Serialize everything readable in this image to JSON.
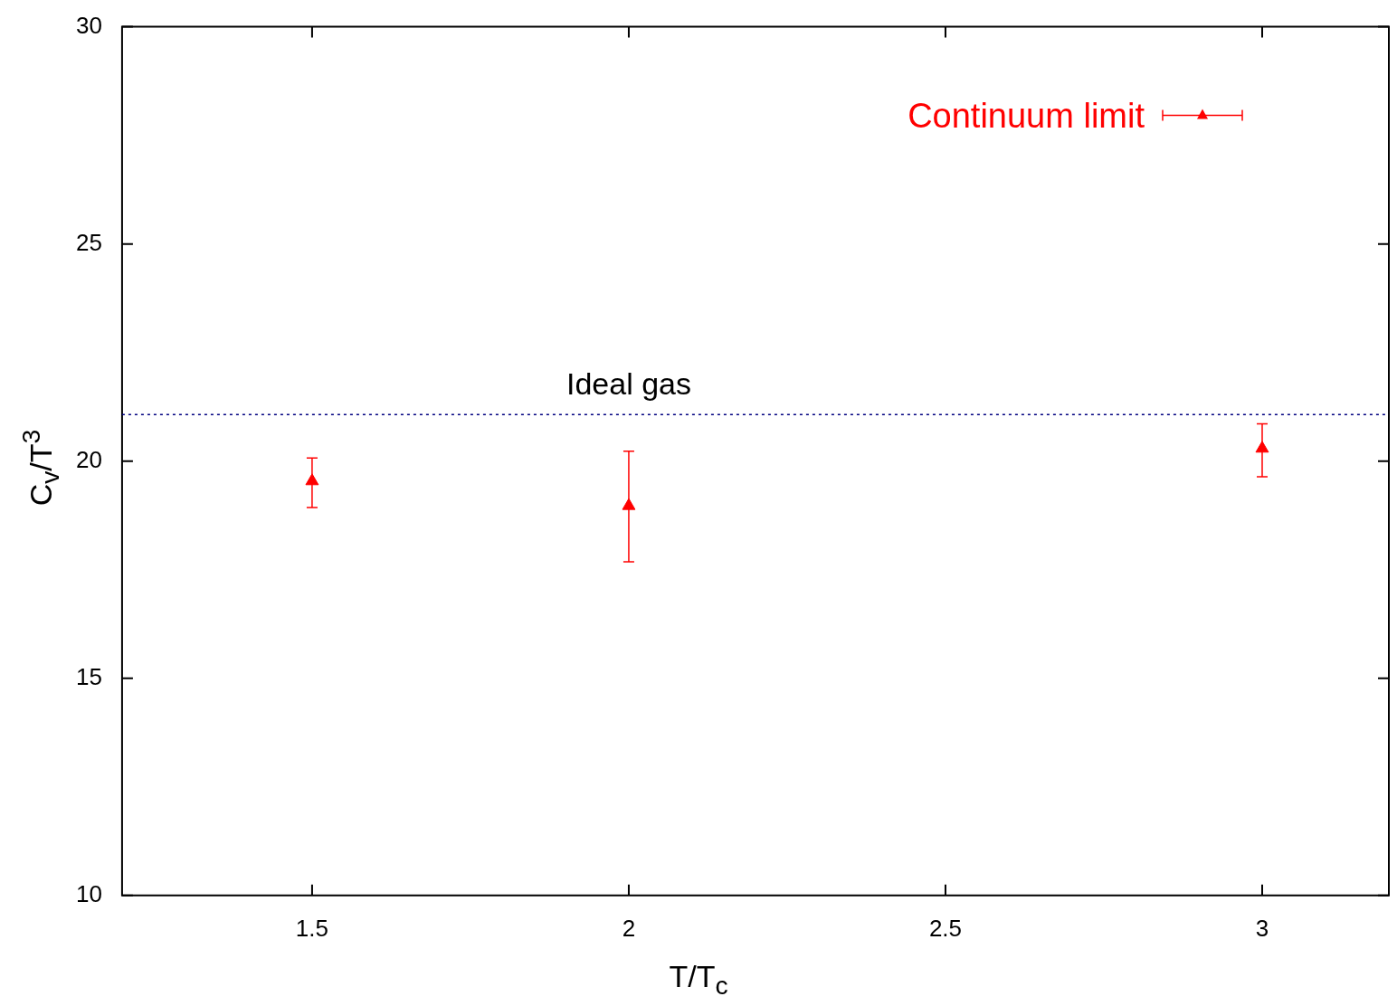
{
  "chart_data": {
    "type": "scatter",
    "xlabel": "T/T$_{c}$",
    "ylabel": "C$_{v}$/T$^{3}$",
    "xlim": [
      1.2,
      3.2
    ],
    "xticks": [
      1.5,
      2,
      2.5,
      3
    ],
    "ylim": [
      10,
      30
    ],
    "yticks": [
      10,
      15,
      20,
      25,
      30
    ],
    "grid": false,
    "legend": "top right",
    "marker": "triangle",
    "series": [
      {
        "name": "Continuum limit",
        "color": "#ff0000",
        "x": [
          1.5,
          2,
          3
        ],
        "values": [
          19.54,
          18.97,
          20.29
        ],
        "errors": [
          [
            18.93,
            20.07
          ],
          [
            17.68,
            20.23
          ],
          [
            19.64,
            20.86
          ]
        ]
      }
    ],
    "ref_lines": [
      {
        "axis": "y",
        "value": 21.07,
        "label": "Ideal gas",
        "color": "#000080",
        "line_style": "dotted"
      }
    ]
  }
}
